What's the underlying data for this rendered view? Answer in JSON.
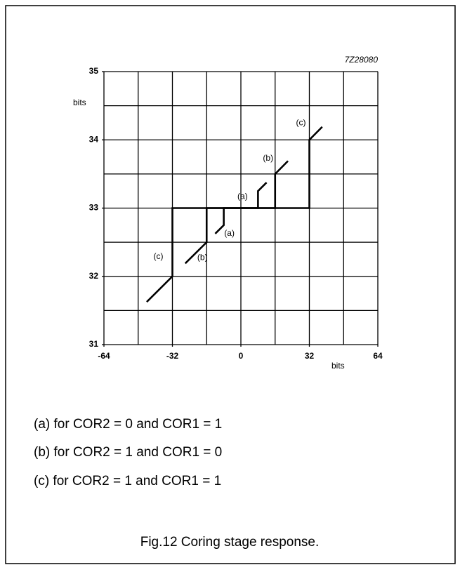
{
  "chart_data": {
    "type": "line",
    "figure_code": "7Z28080",
    "ylabel": "bits",
    "xlabel": "bits",
    "xlim": [
      -64,
      64
    ],
    "ylim": [
      31,
      35
    ],
    "xticks": [
      -64,
      -32,
      0,
      32,
      64
    ],
    "yticks": [
      31,
      32,
      33,
      34,
      35
    ],
    "grid": {
      "x": 16,
      "y": 0.5
    },
    "color": "#000000",
    "series": [
      {
        "name": "(a)",
        "x": [
          -12,
          -8,
          -8,
          8,
          8,
          12
        ],
        "values": [
          32.625,
          32.75,
          33,
          33,
          33.25,
          33.375
        ]
      },
      {
        "name": "(b)",
        "x": [
          -26,
          -16,
          -16,
          16,
          16,
          22
        ],
        "values": [
          32.19,
          32.5,
          33,
          33,
          33.5,
          33.69
        ]
      },
      {
        "name": "(c)",
        "x": [
          -44,
          -32,
          -32,
          32,
          32,
          38
        ],
        "values": [
          31.625,
          32,
          33,
          33,
          34,
          34.19
        ]
      }
    ],
    "notes": [
      "(a) for COR2 =  0 and COR1 =  1",
      "(b) for COR2 =  1 and COR1 =  0",
      "(c) for COR2 =  1 and COR1 =  1"
    ],
    "caption": "Fig.12   Coring stage response."
  }
}
